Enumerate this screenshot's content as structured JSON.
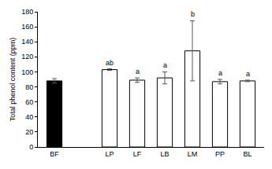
{
  "chart_data": {
    "type": "bar",
    "y_label": "Total phenol content (ppm)",
    "categories": [
      "BF",
      null,
      "LP",
      "LF",
      "LB",
      "LM",
      "PP",
      "BL"
    ],
    "values": [
      88,
      null,
      103,
      89,
      92,
      128,
      87,
      88
    ],
    "errors": [
      3,
      null,
      1,
      3,
      8,
      40,
      3,
      1
    ],
    "group_labels": [
      null,
      null,
      "ab",
      "a",
      "a",
      "b",
      "a",
      "a"
    ],
    "colors": [
      "#000000",
      null,
      "#ffffff",
      "#ffffff",
      "#ffffff",
      "#ffffff",
      "#ffffff",
      "#ffffff"
    ],
    "ylim": [
      0,
      180
    ],
    "yticks": [
      0,
      20,
      40,
      60,
      80,
      100,
      120,
      140,
      160,
      180
    ],
    "grid": false
  }
}
